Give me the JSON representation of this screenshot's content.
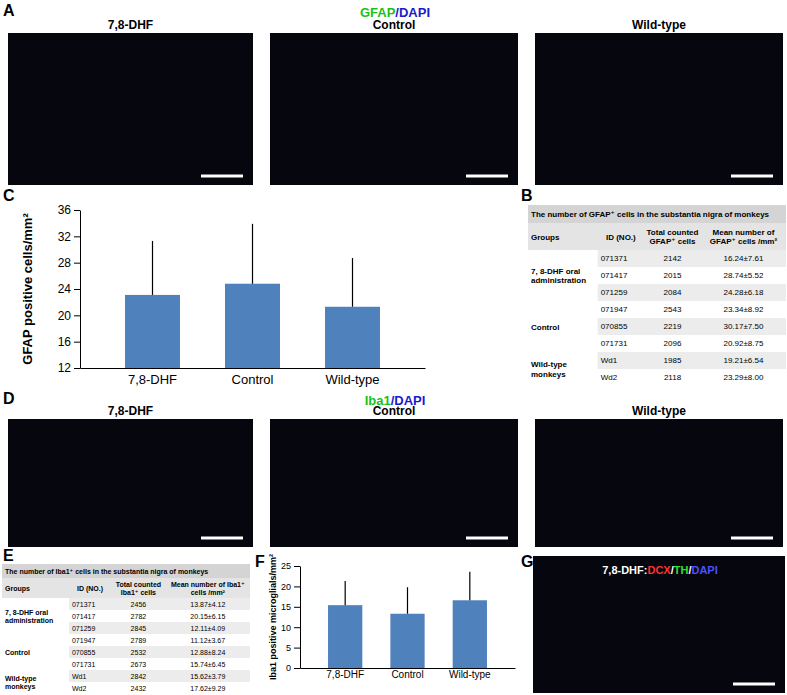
{
  "image_panels": [
    {
      "panel_label": "A",
      "title": [
        {
          "text": "GFAP",
          "color": "#19c219"
        },
        {
          "text": "/DAPI",
          "color": "#1a1acc"
        }
      ],
      "labels": [
        "7,8-DHF",
        "Control",
        "Wild-type"
      ]
    },
    {
      "panel_label": "D",
      "title": [
        {
          "text": "Iba1",
          "color": "#19c219"
        },
        {
          "text": "/DAPI",
          "color": "#1a1acc"
        }
      ],
      "labels": [
        "7,8-DHF",
        "Control",
        "Wild-type"
      ]
    },
    {
      "panel_label": "G",
      "title": [
        {
          "text": "7,8-DHF:",
          "color": "#ffffff"
        },
        {
          "text": "DCX",
          "color": "#ff3030"
        },
        {
          "text": "/",
          "color": "#ffffff"
        },
        {
          "text": "TH",
          "color": "#30e030"
        },
        {
          "text": "/",
          "color": "#ffffff"
        },
        {
          "text": "DAPI",
          "color": "#5050ff"
        }
      ]
    }
  ],
  "tables": [
    {
      "panel_label": "B",
      "title": "The number of GFAP⁺ cells in the substantia nigra of monkeys",
      "header": [
        "Groups",
        "ID (NO.)",
        "Total counted GFAP⁺ cells",
        "Mean number of GFAP⁺ cells /mm²"
      ],
      "groups": [
        {
          "name": "7, 8-DHF oral administration",
          "rows": [
            [
              "071371",
              2142,
              "16.24±7.61"
            ],
            [
              "071417",
              2015,
              "28.74±5.52"
            ],
            [
              "071259",
              2084,
              "24.28±6.18"
            ]
          ]
        },
        {
          "name": "Control",
          "rows": [
            [
              "071947",
              2543,
              "23.34±8.92"
            ],
            [
              "070855",
              2219,
              "30.17±7.50"
            ],
            [
              "071731",
              2096,
              "20.92±8.75"
            ]
          ]
        },
        {
          "name": "Wild-type monkeys",
          "rows": [
            [
              "Wd1",
              1985,
              "19.21±6.54"
            ],
            [
              "Wd2",
              2118,
              "23.29±8.00"
            ]
          ]
        }
      ]
    },
    {
      "panel_label": "E",
      "title": "The number of Iba1⁺ cells in the substantia nigra of monkeys",
      "header": [
        "Groups",
        "ID (NO.)",
        "Total counted Iba1⁺ cells",
        "Mean number of Iba1⁺ cells /mm²"
      ],
      "groups": [
        {
          "name": "7, 8-DHF oral administration",
          "rows": [
            [
              "071371",
              2456,
              "13.87±4.12"
            ],
            [
              "071417",
              2782,
              "20.15±6.15"
            ],
            [
              "071259",
              2845,
              "12.11±4.09"
            ]
          ]
        },
        {
          "name": "Control",
          "rows": [
            [
              "071947",
              2789,
              "11.12±3.67"
            ],
            [
              "070855",
              2532,
              "12.88±8.24"
            ],
            [
              "071731",
              2673,
              "15.74±6.45"
            ]
          ]
        },
        {
          "name": "Wild-type monkeys",
          "rows": [
            [
              "Wd1",
              2842,
              "15.62±3.79"
            ],
            [
              "Wd2",
              2432,
              "17.62±9.29"
            ]
          ]
        }
      ]
    }
  ],
  "chart_data": [
    {
      "panel_label": "C",
      "type": "bar",
      "categories": [
        "7,8-DHF",
        "Control",
        "Wild-type"
      ],
      "values": [
        23.1,
        24.8,
        21.3
      ],
      "errors": [
        8.2,
        9.1,
        7.4
      ],
      "color": "#4f81bd",
      "y_label": "GFAP positive cells/mm²",
      "ylim": [
        12,
        36
      ],
      "yticks": [
        12,
        16,
        20,
        24,
        28,
        32,
        36
      ]
    },
    {
      "panel_label": "F",
      "type": "bar",
      "categories": [
        "7,8-DHF",
        "Control",
        "Wild-type"
      ],
      "values": [
        15.4,
        13.3,
        16.6
      ],
      "errors": [
        5.9,
        6.5,
        7.0
      ],
      "color": "#4f81bd",
      "y_label": "Iba1 positive microglials/mm²",
      "ylim": [
        0,
        25
      ],
      "yticks": [
        0,
        5,
        10,
        15,
        20,
        25
      ]
    }
  ]
}
